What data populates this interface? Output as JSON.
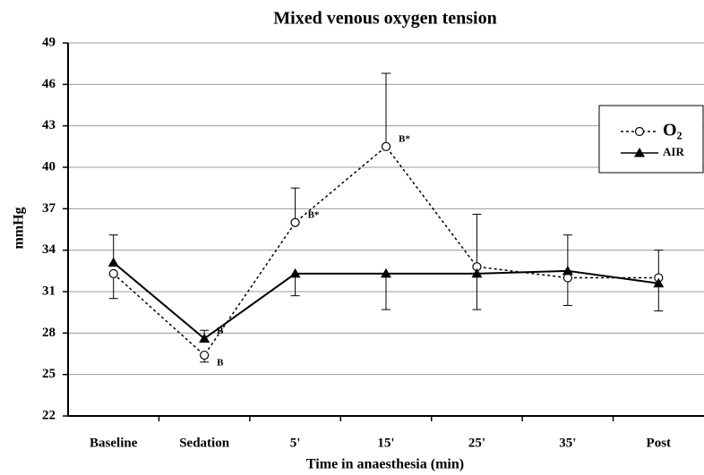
{
  "chart_data": {
    "type": "line",
    "title": "Mixed venous oxygen tension",
    "x_label": "Time in anaesthesia (min)",
    "y_label": "mmHg",
    "categories": [
      "Baseline",
      "Sedation",
      "5'",
      "15'",
      "25'",
      "35'",
      "Post"
    ],
    "ylim": [
      22,
      49
    ],
    "yticks": [
      22,
      25,
      28,
      31,
      34,
      37,
      40,
      43,
      46,
      49
    ],
    "grid": true,
    "legend": "upper right",
    "series": [
      {
        "name": "O₂",
        "color": "#000000",
        "line_style": "dotted",
        "marker": "circle",
        "values": [
          32.3,
          26.4,
          36.0,
          41.5,
          32.8,
          32.0,
          32.0
        ],
        "error_up": [
          null,
          null,
          2.5,
          5.3,
          3.8,
          null,
          2.0
        ],
        "error_down": [
          1.8,
          0.5,
          null,
          null,
          null,
          2.0,
          null
        ],
        "point_labels": [
          null,
          "B",
          "B*",
          "B*",
          null,
          null,
          null
        ]
      },
      {
        "name": "AIR",
        "color": "#000000",
        "line_style": "solid",
        "marker": "triangle",
        "values": [
          33.1,
          27.6,
          32.3,
          32.3,
          32.3,
          32.5,
          31.6
        ],
        "error_up": [
          2.0,
          0.6,
          null,
          null,
          null,
          2.6,
          null
        ],
        "error_down": [
          null,
          null,
          1.6,
          2.6,
          2.6,
          null,
          2.0
        ],
        "point_labels": [
          null,
          "B",
          null,
          null,
          null,
          null,
          null
        ]
      }
    ]
  }
}
